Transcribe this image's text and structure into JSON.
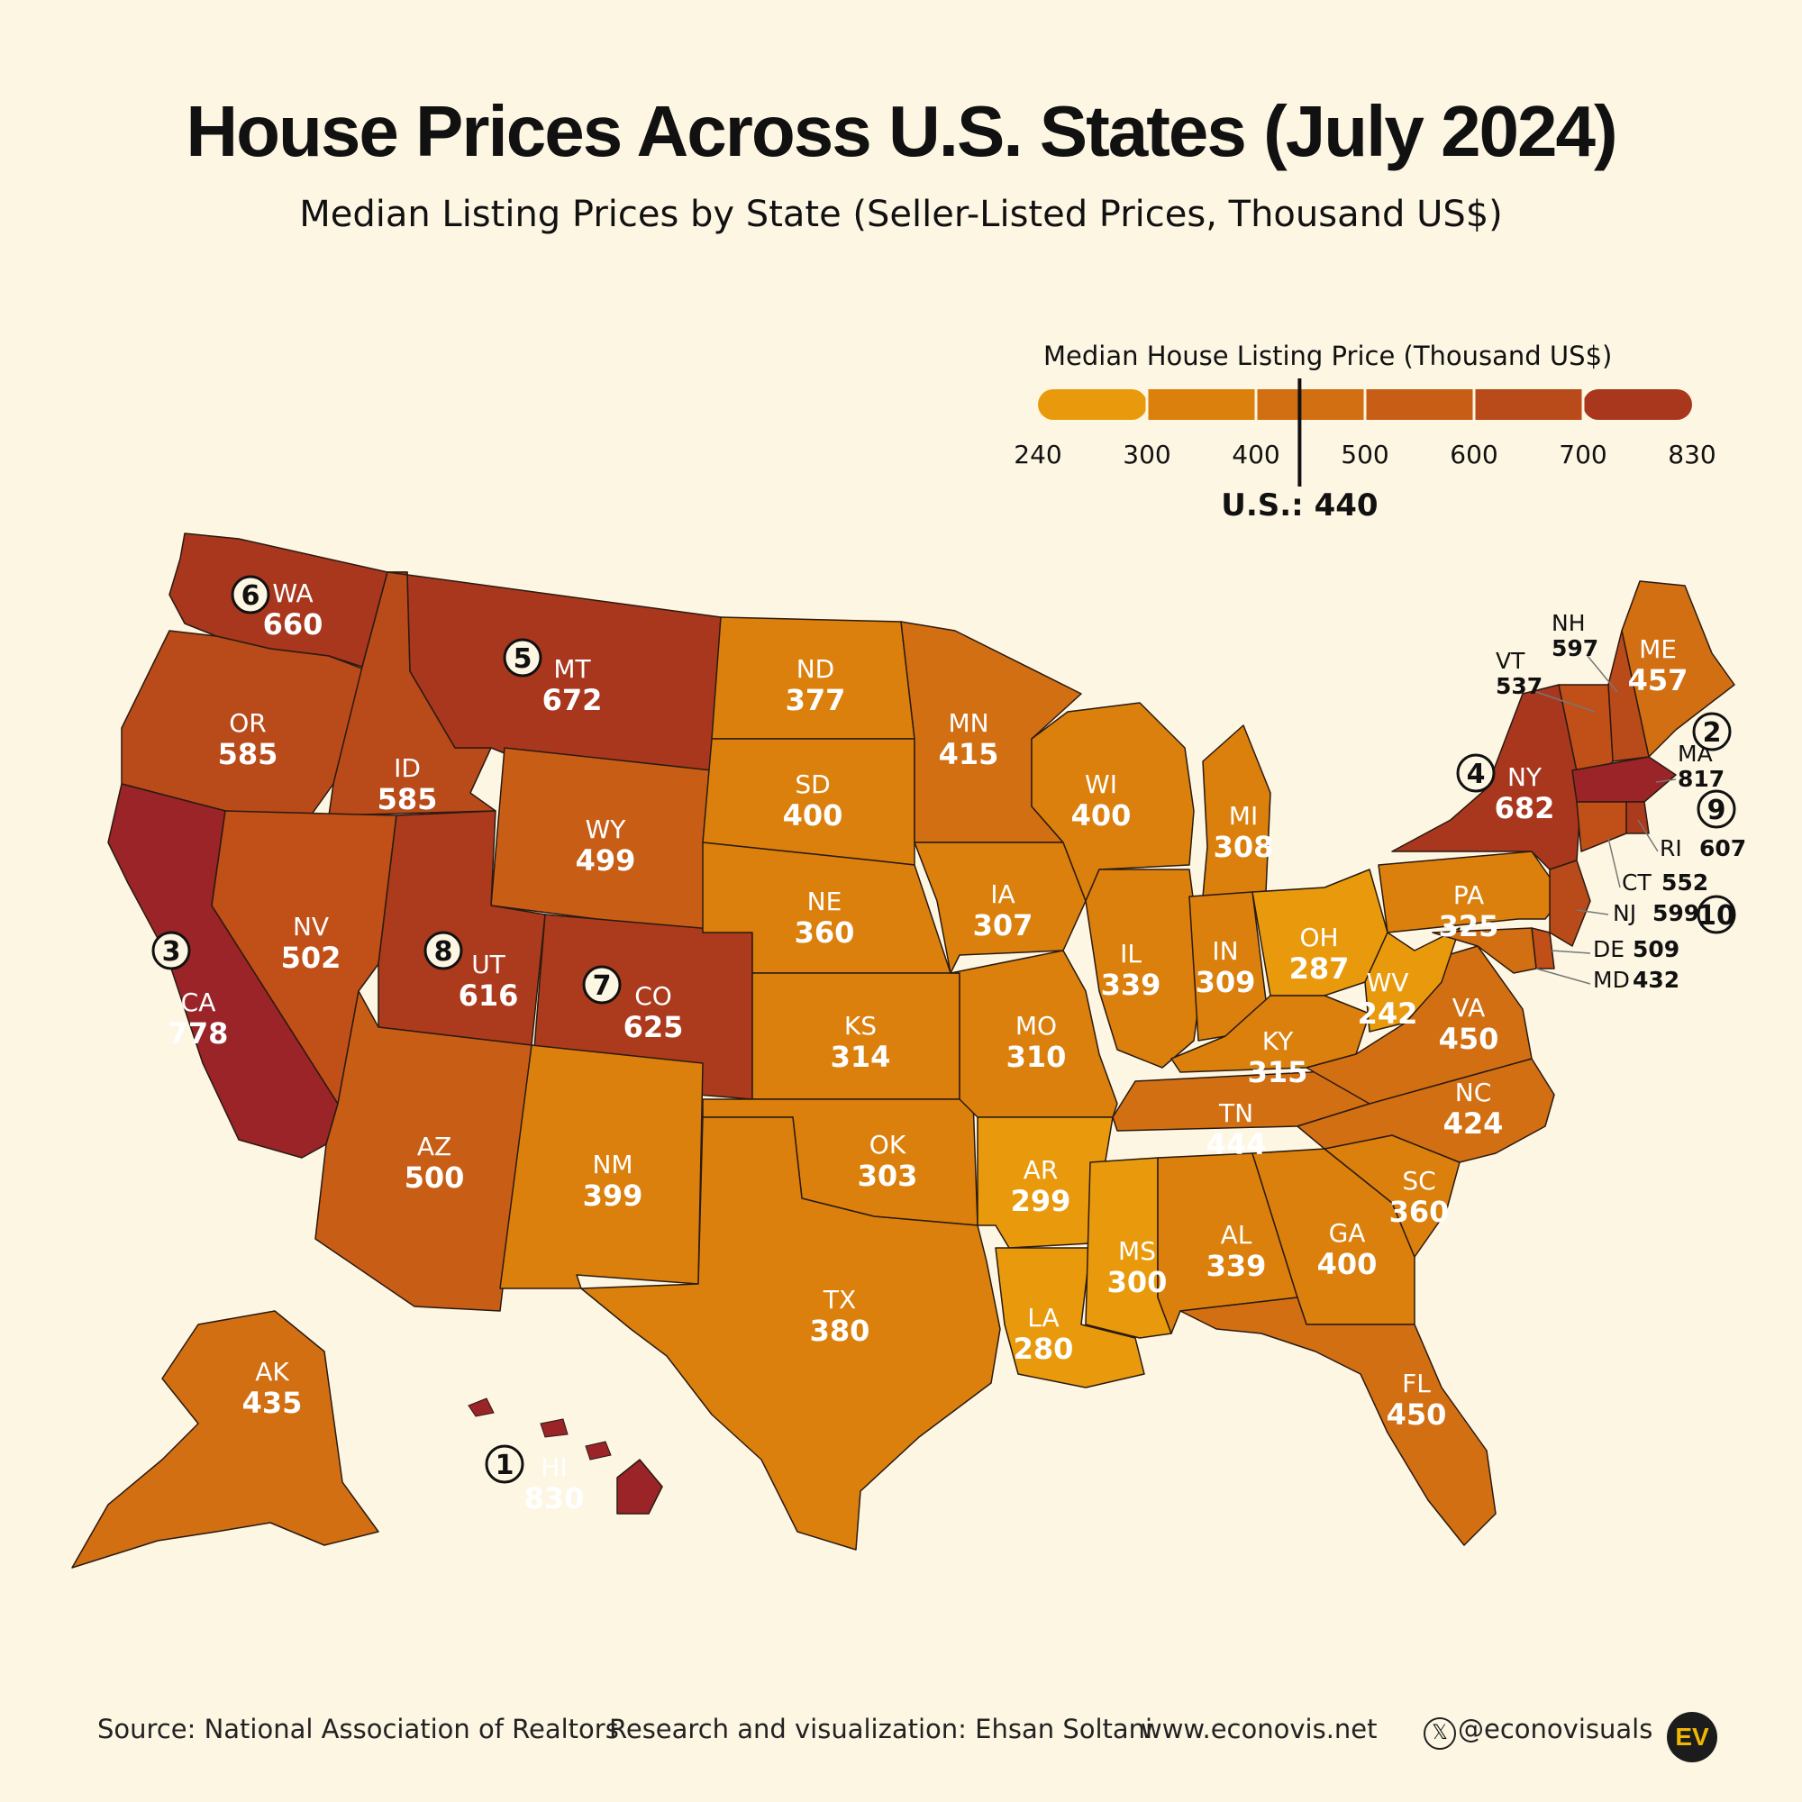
{
  "title": "House Prices Across U.S. States (July 2024)",
  "subtitle": "Median Listing Prices by State (Seller-Listed Prices, Thousand US$)",
  "legend": {
    "title": "Median House Listing Price (Thousand US$)",
    "ticks": [
      "240",
      "300",
      "400",
      "500",
      "600",
      "700",
      "830"
    ],
    "colors": [
      "#e99a0c",
      "#db800c",
      "#d26f12",
      "#c85e16",
      "#b94a1a",
      "#a8371e",
      "#9a2427"
    ],
    "us_marker_label": "U.S.: 440",
    "us_value": 440
  },
  "states": [
    {
      "abbr": "WA",
      "value": "660",
      "rank": "6",
      "fill": "#a8371e"
    },
    {
      "abbr": "OR",
      "value": "585",
      "rank": "",
      "fill": "#b94a1a"
    },
    {
      "abbr": "CA",
      "value": "778",
      "rank": "3",
      "fill": "#9a2427"
    },
    {
      "abbr": "ID",
      "value": "585",
      "rank": "",
      "fill": "#b94a1a"
    },
    {
      "abbr": "NV",
      "value": "502",
      "rank": "",
      "fill": "#c04f18"
    },
    {
      "abbr": "MT",
      "value": "672",
      "rank": "5",
      "fill": "#a8371e"
    },
    {
      "abbr": "WY",
      "value": "499",
      "rank": "",
      "fill": "#c85e16"
    },
    {
      "abbr": "UT",
      "value": "616",
      "rank": "8",
      "fill": "#ac3a1d"
    },
    {
      "abbr": "CO",
      "value": "625",
      "rank": "7",
      "fill": "#ac3a1d"
    },
    {
      "abbr": "AZ",
      "value": "500",
      "rank": "",
      "fill": "#c85e16"
    },
    {
      "abbr": "NM",
      "value": "399",
      "rank": "",
      "fill": "#db800c"
    },
    {
      "abbr": "ND",
      "value": "377",
      "rank": "",
      "fill": "#db800c"
    },
    {
      "abbr": "SD",
      "value": "400",
      "rank": "",
      "fill": "#db800c"
    },
    {
      "abbr": "NE",
      "value": "360",
      "rank": "",
      "fill": "#db800c"
    },
    {
      "abbr": "KS",
      "value": "314",
      "rank": "",
      "fill": "#db800c"
    },
    {
      "abbr": "OK",
      "value": "303",
      "rank": "",
      "fill": "#db800c"
    },
    {
      "abbr": "TX",
      "value": "380",
      "rank": "",
      "fill": "#db800c"
    },
    {
      "abbr": "MN",
      "value": "415",
      "rank": "",
      "fill": "#d26f12"
    },
    {
      "abbr": "IA",
      "value": "307",
      "rank": "",
      "fill": "#db800c"
    },
    {
      "abbr": "MO",
      "value": "310",
      "rank": "",
      "fill": "#db800c"
    },
    {
      "abbr": "AR",
      "value": "299",
      "rank": "",
      "fill": "#e99a0c"
    },
    {
      "abbr": "LA",
      "value": "280",
      "rank": "",
      "fill": "#e99a0c"
    },
    {
      "abbr": "WI",
      "value": "400",
      "rank": "",
      "fill": "#db800c"
    },
    {
      "abbr": "IL",
      "value": "339",
      "rank": "",
      "fill": "#db800c"
    },
    {
      "abbr": "MI",
      "value": "308",
      "rank": "",
      "fill": "#db800c"
    },
    {
      "abbr": "IN",
      "value": "309",
      "rank": "",
      "fill": "#db800c"
    },
    {
      "abbr": "OH",
      "value": "287",
      "rank": "",
      "fill": "#e99a0c"
    },
    {
      "abbr": "KY",
      "value": "315",
      "rank": "",
      "fill": "#db800c"
    },
    {
      "abbr": "TN",
      "value": "444",
      "rank": "",
      "fill": "#d26f12"
    },
    {
      "abbr": "MS",
      "value": "300",
      "rank": "",
      "fill": "#e99a0c"
    },
    {
      "abbr": "AL",
      "value": "339",
      "rank": "",
      "fill": "#db800c"
    },
    {
      "abbr": "GA",
      "value": "400",
      "rank": "",
      "fill": "#db800c"
    },
    {
      "abbr": "FL",
      "value": "450",
      "rank": "",
      "fill": "#d26f12"
    },
    {
      "abbr": "SC",
      "value": "360",
      "rank": "",
      "fill": "#db800c"
    },
    {
      "abbr": "NC",
      "value": "424",
      "rank": "",
      "fill": "#d26f12"
    },
    {
      "abbr": "VA",
      "value": "450",
      "rank": "",
      "fill": "#d26f12"
    },
    {
      "abbr": "WV",
      "value": "242",
      "rank": "",
      "fill": "#e99a0c"
    },
    {
      "abbr": "PA",
      "value": "325",
      "rank": "",
      "fill": "#db800c"
    },
    {
      "abbr": "NY",
      "value": "682",
      "rank": "4",
      "fill": "#a8371e"
    },
    {
      "abbr": "ME",
      "value": "457",
      "rank": "",
      "fill": "#d26f12"
    },
    {
      "abbr": "AK",
      "value": "435",
      "rank": "",
      "fill": "#d26f12"
    },
    {
      "abbr": "HI",
      "value": "830",
      "rank": "1",
      "fill": "#9a2427"
    }
  ],
  "small_states": [
    {
      "abbr": "NH",
      "value": "597",
      "rank": "",
      "fill": "#b94a1a"
    },
    {
      "abbr": "VT",
      "value": "537",
      "rank": "",
      "fill": "#c04f18"
    },
    {
      "abbr": "MA",
      "value": "817",
      "rank": "2",
      "fill": "#9a2427"
    },
    {
      "abbr": "RI",
      "value": "607",
      "rank": "9",
      "fill": "#ac3a1d"
    },
    {
      "abbr": "CT",
      "value": "552",
      "rank": "",
      "fill": "#c04f18"
    },
    {
      "abbr": "NJ",
      "value": "599",
      "rank": "10",
      "fill": "#b94a1a"
    },
    {
      "abbr": "DE",
      "value": "509",
      "rank": "",
      "fill": "#c04f18"
    },
    {
      "abbr": "MD",
      "value": "432",
      "rank": "",
      "fill": "#d26f12"
    }
  ],
  "footer": {
    "source": "Source: National Association of Realtors",
    "credit": "Research and visualization: Ehsan Soltani",
    "website": "www.econovis.net",
    "social": "@econovisuals",
    "logo": "EV"
  }
}
